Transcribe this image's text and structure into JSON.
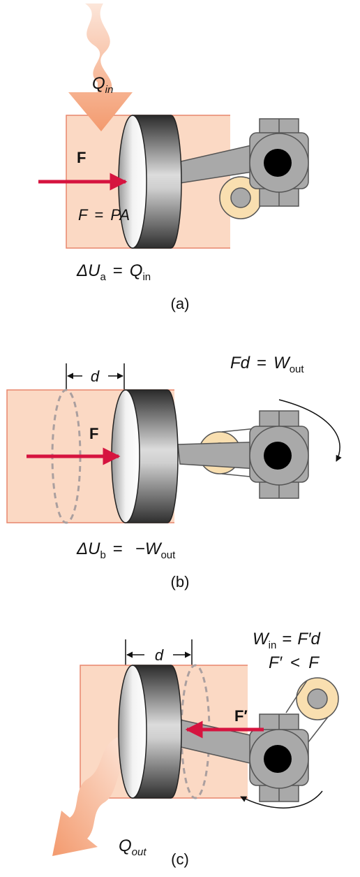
{
  "panel_a": {
    "heat_label": "Q",
    "heat_sub": "in",
    "force_label": "F",
    "eq_lhs": "F",
    "eq_mid": "=",
    "eq_rhs": "PA",
    "energy_lhs": "ΔU",
    "energy_sub": "a",
    "energy_eq": "=",
    "energy_rhs": "Q",
    "energy_rhs_sub": "in",
    "caption": "(a)"
  },
  "panel_b": {
    "work_lhs": "Fd",
    "work_eq": "=",
    "work_rhs": "W",
    "work_rhs_sub": "out",
    "distance_label": "d",
    "force_label": "F",
    "energy_lhs": "ΔU",
    "energy_sub": "b",
    "energy_eq": "=",
    "energy_rhs": "−W",
    "energy_rhs_sub": "out",
    "caption": "(b)"
  },
  "panel_c": {
    "work_lhs": "W",
    "work_lhs_sub": "in",
    "work_eq": "=",
    "work_rhs": "F′d",
    "ineq_lhs": "F′",
    "ineq_op": "<",
    "ineq_rhs": "F",
    "distance_label": "d",
    "force_label": "F′",
    "heat_label": "Q",
    "heat_sub": "out",
    "caption": "(c)"
  },
  "colors": {
    "gas": "#fbd9c4",
    "gas_border": "#e8866c",
    "heat_arrow": "#f3a076",
    "force_arrow": "#d6143f",
    "crank_gray": "#a9a9a9",
    "crank_dark": "#555555",
    "wheel_tan": "#f9dfb0"
  }
}
